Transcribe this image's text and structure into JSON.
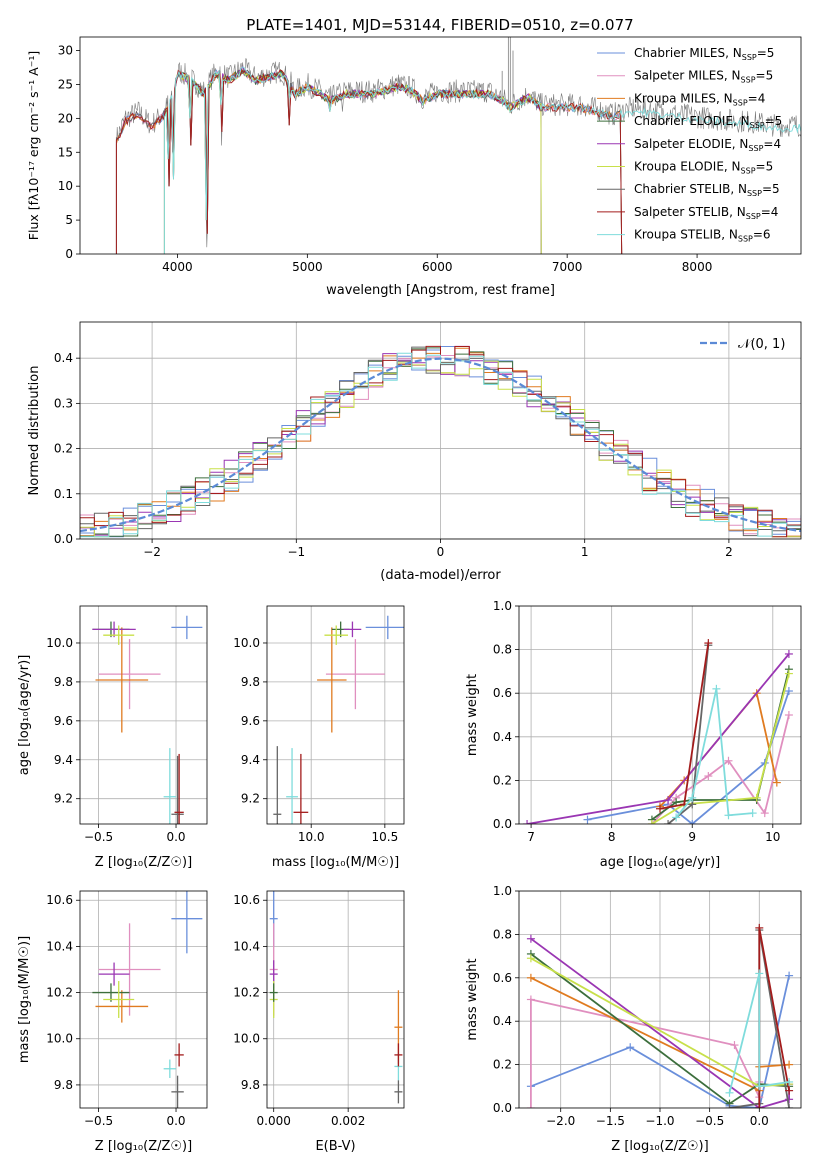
{
  "title": "PLATE=1401, MJD=53144, FIBERID=0510, z=0.077",
  "colors": {
    "cornflower": "#6a8fdb",
    "pink": "#e08fbf",
    "orange": "#e07b20",
    "green": "#3c6e3c",
    "purple": "#9a36b3",
    "lime": "#c8e04a",
    "gray": "#666666",
    "darkred": "#a31c1c",
    "cyan": "#7fdcdc"
  },
  "chart_data": [
    {
      "type": "line",
      "name": "spectrum",
      "xlabel": "wavelength [Angstrom, rest frame]",
      "ylabel": "Flux [fλ10⁻¹⁷ erg cm⁻² s⁻¹ A⁻¹]",
      "xlim": [
        3250,
        8800
      ],
      "ylim": [
        0,
        32
      ],
      "xticks": [
        "4000",
        "5000",
        "6000",
        "7000",
        "8000"
      ],
      "yticks": [
        "0",
        "5",
        "10",
        "15",
        "20",
        "25",
        "30"
      ],
      "grid": false,
      "legend_position": "top-right",
      "legend": [
        {
          "label": "Chabrier MILES, N",
          "sub": "SSP",
          "tail": "=5",
          "color": "cornflower"
        },
        {
          "label": "Salpeter MILES, N",
          "sub": "SSP",
          "tail": "=5",
          "color": "pink"
        },
        {
          "label": "Kroupa MILES, N",
          "sub": "SSP",
          "tail": "=4",
          "color": "orange"
        },
        {
          "label": "Chabrier ELODIE, N",
          "sub": "SSP",
          "tail": "=5",
          "color": "green"
        },
        {
          "label": "Salpeter ELODIE, N",
          "sub": "SSP",
          "tail": "=4",
          "color": "purple"
        },
        {
          "label": "Kroupa ELODIE, N",
          "sub": "SSP",
          "tail": "=5",
          "color": "lime"
        },
        {
          "label": "Chabrier STELIB, N",
          "sub": "SSP",
          "tail": "=5",
          "color": "gray"
        },
        {
          "label": "Salpeter STELIB, N",
          "sub": "SSP",
          "tail": "=4",
          "color": "darkred"
        },
        {
          "label": "Kroupa STELIB, N",
          "sub": "SSP",
          "tail": "=6",
          "color": "cyan"
        }
      ],
      "envelope": [
        [
          3530,
          17
        ],
        [
          3600,
          20
        ],
        [
          3700,
          21
        ],
        [
          3800,
          19
        ],
        [
          3900,
          21
        ],
        [
          3970,
          24
        ],
        [
          4000,
          27
        ],
        [
          4100,
          26
        ],
        [
          4200,
          24
        ],
        [
          4300,
          27
        ],
        [
          4400,
          26
        ],
        [
          4500,
          27.5
        ],
        [
          4600,
          26
        ],
        [
          4700,
          26.5
        ],
        [
          4800,
          27
        ],
        [
          4880,
          25
        ],
        [
          4900,
          24
        ],
        [
          5000,
          25
        ],
        [
          5100,
          24
        ],
        [
          5175,
          23
        ],
        [
          5300,
          24
        ],
        [
          5400,
          24
        ],
        [
          5500,
          24
        ],
        [
          5600,
          24.5
        ],
        [
          5700,
          25
        ],
        [
          5800,
          24.5
        ],
        [
          5890,
          23
        ],
        [
          6000,
          24
        ],
        [
          6200,
          24
        ],
        [
          6400,
          24
        ],
        [
          6500,
          23
        ],
        [
          6563,
          22
        ],
        [
          6700,
          23.5
        ],
        [
          6800,
          22
        ],
        [
          7000,
          22
        ],
        [
          7100,
          22
        ],
        [
          7200,
          21.5
        ],
        [
          7300,
          21
        ],
        [
          7350,
          20.5
        ],
        [
          7400,
          21
        ],
        [
          7500,
          21.5
        ],
        [
          7700,
          21
        ],
        [
          7900,
          20.5
        ],
        [
          8100,
          20
        ],
        [
          8400,
          19.5
        ],
        [
          8600,
          19
        ],
        [
          8800,
          19
        ]
      ],
      "absorptions": [
        [
          3934,
          8
        ],
        [
          3969,
          10
        ],
        [
          4102,
          14
        ],
        [
          4227,
          0
        ],
        [
          4340,
          16
        ],
        [
          4861,
          18
        ],
        [
          5175,
          20
        ],
        [
          5270,
          21
        ],
        [
          5890,
          20
        ],
        [
          6563,
          18
        ]
      ]
    },
    {
      "type": "line",
      "name": "residual-histogram",
      "xlabel": "(data-model)/error",
      "ylabel": "Normed distribution",
      "xlim": [
        -2.5,
        2.5
      ],
      "ylim": [
        0,
        0.48
      ],
      "xticks": [
        "−2",
        "−1",
        "0",
        "1",
        "2"
      ],
      "yticks": [
        "0.0",
        "0.1",
        "0.2",
        "0.3",
        "0.4"
      ],
      "grid": true,
      "legend_position": "top-right",
      "legend_label": "𝒩(0, 1)"
    },
    {
      "type": "scatter",
      "name": "age-vs-z",
      "xlabel": "Z [log₁₀(Z/Z☉)]",
      "ylabel": "age  [log₁₀(age/yr)]",
      "xlim": [
        -0.62,
        0.2
      ],
      "ylim": [
        9.07,
        10.19
      ],
      "xticks": [
        "−0.5",
        "0.0"
      ],
      "yticks": [
        "9.2",
        "9.4",
        "9.6",
        "9.8",
        "10.0"
      ],
      "grid": true,
      "points": [
        {
          "c": "cornflower",
          "x": 0.07,
          "xe": 0.1,
          "y": 10.08,
          "ye": 0.06
        },
        {
          "c": "pink",
          "x": -0.3,
          "xe": 0.2,
          "y": 9.84,
          "ye": 0.18
        },
        {
          "c": "orange",
          "x": -0.35,
          "xe": 0.17,
          "y": 9.81,
          "ye": 0.27
        },
        {
          "c": "green",
          "x": -0.42,
          "xe": 0.12,
          "y": 10.07,
          "ye": 0.04
        },
        {
          "c": "purple",
          "x": -0.4,
          "xe": 0.14,
          "y": 10.07,
          "ye": 0.04
        },
        {
          "c": "lime",
          "x": -0.37,
          "xe": 0.1,
          "y": 10.04,
          "ye": 0.05
        },
        {
          "c": "gray",
          "x": 0.01,
          "xe": 0.04,
          "y": 9.12,
          "ye": 0.3
        },
        {
          "c": "darkred",
          "x": 0.02,
          "xe": 0.03,
          "y": 9.13,
          "ye": 0.3
        },
        {
          "c": "cyan",
          "x": -0.04,
          "xe": 0.04,
          "y": 9.21,
          "ye": 0.25
        }
      ]
    },
    {
      "type": "scatter",
      "name": "age-vs-mass",
      "xlabel": "mass [log₁₀(M/M☉)]",
      "ylabel": "",
      "xlim": [
        9.7,
        10.63
      ],
      "ylim": [
        9.07,
        10.19
      ],
      "xticks": [
        "10.0",
        "10.5"
      ],
      "yticks": [
        "9.2",
        "9.4",
        "9.6",
        "9.8",
        "10.0"
      ],
      "grid": true,
      "points": [
        {
          "c": "cornflower",
          "x": 10.52,
          "xe": 0.15,
          "y": 10.08,
          "ye": 0.06
        },
        {
          "c": "pink",
          "x": 10.3,
          "xe": 0.2,
          "y": 9.84,
          "ye": 0.18
        },
        {
          "c": "orange",
          "x": 10.14,
          "xe": 0.1,
          "y": 9.81,
          "ye": 0.27
        },
        {
          "c": "green",
          "x": 10.2,
          "xe": 0.06,
          "y": 10.07,
          "ye": 0.04
        },
        {
          "c": "purple",
          "x": 10.28,
          "xe": 0.06,
          "y": 10.07,
          "ye": 0.04
        },
        {
          "c": "lime",
          "x": 10.17,
          "xe": 0.08,
          "y": 10.04,
          "ye": 0.05
        },
        {
          "c": "gray",
          "x": 9.77,
          "xe": 0.01,
          "y": 9.12,
          "ye": 0.35
        },
        {
          "c": "darkred",
          "x": 9.93,
          "xe": 0.05,
          "y": 9.13,
          "ye": 0.3
        },
        {
          "c": "cyan",
          "x": 9.87,
          "xe": 0.04,
          "y": 9.21,
          "ye": 0.25
        }
      ]
    },
    {
      "type": "line",
      "name": "mass-weight-vs-age",
      "xlabel": "age  [log₁₀(age/yr)]",
      "ylabel": "mass weight",
      "xlim": [
        6.85,
        10.35
      ],
      "ylim": [
        0,
        1.0
      ],
      "xticks": [
        "7",
        "8",
        "9",
        "10"
      ],
      "yticks": [
        "0.0",
        "0.2",
        "0.4",
        "0.6",
        "0.8",
        "1.0"
      ],
      "grid": true,
      "series": [
        {
          "c": "cornflower",
          "x": [
            7.7,
            8.7,
            9.0,
            9.9,
            10.2
          ],
          "y": [
            0.02,
            0.09,
            0.0,
            0.28,
            0.61
          ]
        },
        {
          "c": "pink",
          "x": [
            8.5,
            8.8,
            9.2,
            9.45,
            9.9,
            10.2
          ],
          "y": [
            0.0,
            0.12,
            0.22,
            0.29,
            0.05,
            0.5
          ]
        },
        {
          "c": "orange",
          "x": [
            8.6,
            8.9,
            9.8,
            10.05
          ],
          "y": [
            0.08,
            0.2,
            0.6,
            0.19
          ]
        },
        {
          "c": "green",
          "x": [
            8.5,
            8.8,
            9.0,
            9.8,
            10.2
          ],
          "y": [
            0.02,
            0.1,
            0.11,
            0.11,
            0.71
          ]
        },
        {
          "c": "purple",
          "x": [
            6.95,
            8.7,
            10.2
          ],
          "y": [
            0.0,
            0.11,
            0.78
          ]
        },
        {
          "c": "lime",
          "x": [
            8.5,
            8.9,
            9.8,
            10.2
          ],
          "y": [
            0.0,
            0.09,
            0.12,
            0.69
          ]
        },
        {
          "c": "gray",
          "x": [
            8.7,
            9.0,
            9.2
          ],
          "y": [
            0.0,
            0.09,
            0.82
          ]
        },
        {
          "c": "darkred",
          "x": [
            8.6,
            8.9,
            9.2
          ],
          "y": [
            0.07,
            0.09,
            0.83
          ]
        },
        {
          "c": "cyan",
          "x": [
            8.8,
            9.0,
            9.3,
            9.45,
            9.75
          ],
          "y": [
            0.03,
            0.12,
            0.62,
            0.04,
            0.05
          ]
        }
      ]
    },
    {
      "type": "scatter",
      "name": "mass-vs-z",
      "xlabel": "Z [log₁₀(Z/Z☉)]",
      "ylabel": "mass [log₁₀(M/M☉)]",
      "xlim": [
        -0.62,
        0.2
      ],
      "ylim": [
        9.7,
        10.64
      ],
      "xticks": [
        "−0.5",
        "0.0"
      ],
      "yticks": [
        "9.8",
        "10.0",
        "10.2",
        "10.4",
        "10.6"
      ],
      "grid": true,
      "points": [
        {
          "c": "cornflower",
          "x": 0.07,
          "xe": 0.1,
          "y": 10.52,
          "ye": 0.15
        },
        {
          "c": "pink",
          "x": -0.3,
          "xe": 0.2,
          "y": 10.3,
          "ye": 0.2
        },
        {
          "c": "orange",
          "x": -0.35,
          "xe": 0.17,
          "y": 10.14,
          "ye": 0.07
        },
        {
          "c": "green",
          "x": -0.42,
          "xe": 0.12,
          "y": 10.2,
          "ye": 0.04
        },
        {
          "c": "purple",
          "x": -0.4,
          "xe": 0.1,
          "y": 10.28,
          "ye": 0.05
        },
        {
          "c": "lime",
          "x": -0.37,
          "xe": 0.1,
          "y": 10.17,
          "ye": 0.08
        },
        {
          "c": "gray",
          "x": 0.01,
          "xe": 0.04,
          "y": 9.77,
          "ye": 0.07
        },
        {
          "c": "darkred",
          "x": 0.02,
          "xe": 0.03,
          "y": 9.93,
          "ye": 0.05
        },
        {
          "c": "cyan",
          "x": -0.04,
          "xe": 0.04,
          "y": 9.87,
          "ye": 0.04
        }
      ]
    },
    {
      "type": "scatter",
      "name": "mass-vs-ebv",
      "xlabel": "E(B-V)",
      "ylabel": "",
      "xlim": [
        -0.00018,
        0.0035
      ],
      "ylim": [
        9.7,
        10.64
      ],
      "xticks": [
        "0.000",
        "0.002"
      ],
      "yticks": [
        "9.8",
        "10.0",
        "10.2",
        "10.4",
        "10.6"
      ],
      "grid": true,
      "points": [
        {
          "c": "cornflower",
          "x": 0.0,
          "xe": 0.0,
          "y": 10.52,
          "ye": 0.12
        },
        {
          "c": "pink",
          "x": 0.0,
          "xe": 0.0,
          "y": 10.3,
          "ye": 0.2
        },
        {
          "c": "purple",
          "x": 0.0,
          "xe": 0.0,
          "y": 10.28,
          "ye": 0.06
        },
        {
          "c": "lime",
          "x": 0.0,
          "xe": 0.0,
          "y": 10.17,
          "ye": 0.08
        },
        {
          "c": "green",
          "x": 0.0,
          "xe": 0.0,
          "y": 10.2,
          "ye": 0.04
        },
        {
          "c": "orange",
          "x": 0.00335,
          "xe": 0.0,
          "y": 10.05,
          "ye": 0.16
        },
        {
          "c": "cyan",
          "x": 0.00335,
          "xe": 0.0,
          "y": 9.88,
          "ye": 0.06
        },
        {
          "c": "gray",
          "x": 0.00335,
          "xe": 0.0,
          "y": 9.77,
          "ye": 0.05
        },
        {
          "c": "darkred",
          "x": 0.00335,
          "xe": 0.0,
          "y": 9.93,
          "ye": 0.05
        }
      ]
    },
    {
      "type": "line",
      "name": "mass-weight-vs-z",
      "xlabel": "Z [log₁₀(Z/Z☉)]",
      "ylabel": "mass weight",
      "xlim": [
        -2.42,
        0.42
      ],
      "ylim": [
        0,
        1.0
      ],
      "xticks": [
        "−2.0",
        "−1.5",
        "−1.0",
        "−0.5",
        "0.0"
      ],
      "yticks": [
        "0.0",
        "0.2",
        "0.4",
        "0.6",
        "0.8",
        "1.0"
      ],
      "grid": true,
      "series": [
        {
          "c": "cornflower",
          "x": [
            -2.3,
            -1.3,
            -0.3,
            0.0,
            0.3
          ],
          "y": [
            0.1,
            0.28,
            0.01,
            0.0,
            0.61
          ]
        },
        {
          "c": "pink",
          "x": [
            -2.3,
            -2.3,
            -0.25,
            0.0,
            0.0
          ],
          "y": [
            0.0,
            0.5,
            0.29,
            0.05,
            0.12
          ]
        },
        {
          "c": "orange",
          "x": [
            -2.3,
            0.0,
            0.0,
            0.3
          ],
          "y": [
            0.6,
            0.08,
            0.19,
            0.2
          ]
        },
        {
          "c": "green",
          "x": [
            -2.3,
            -0.3,
            0.0,
            0.3
          ],
          "y": [
            0.71,
            0.02,
            0.11,
            0.1
          ]
        },
        {
          "c": "purple",
          "x": [
            -2.3,
            0.0,
            0.3,
            0.3
          ],
          "y": [
            0.78,
            0.0,
            0.04,
            0.11
          ]
        },
        {
          "c": "lime",
          "x": [
            -2.3,
            0.0,
            0.3
          ],
          "y": [
            0.69,
            0.1,
            0.11
          ]
        },
        {
          "c": "gray",
          "x": [
            -0.3,
            0.0,
            0.0,
            0.3
          ],
          "y": [
            0.0,
            0.02,
            0.82,
            0.0
          ]
        },
        {
          "c": "darkred",
          "x": [
            0.0,
            0.0,
            0.3
          ],
          "y": [
            0.0,
            0.83,
            0.08
          ]
        },
        {
          "c": "cyan",
          "x": [
            -0.3,
            0.0,
            0.0,
            0.3
          ],
          "y": [
            0.07,
            0.62,
            0.1,
            0.12
          ]
        }
      ]
    }
  ]
}
